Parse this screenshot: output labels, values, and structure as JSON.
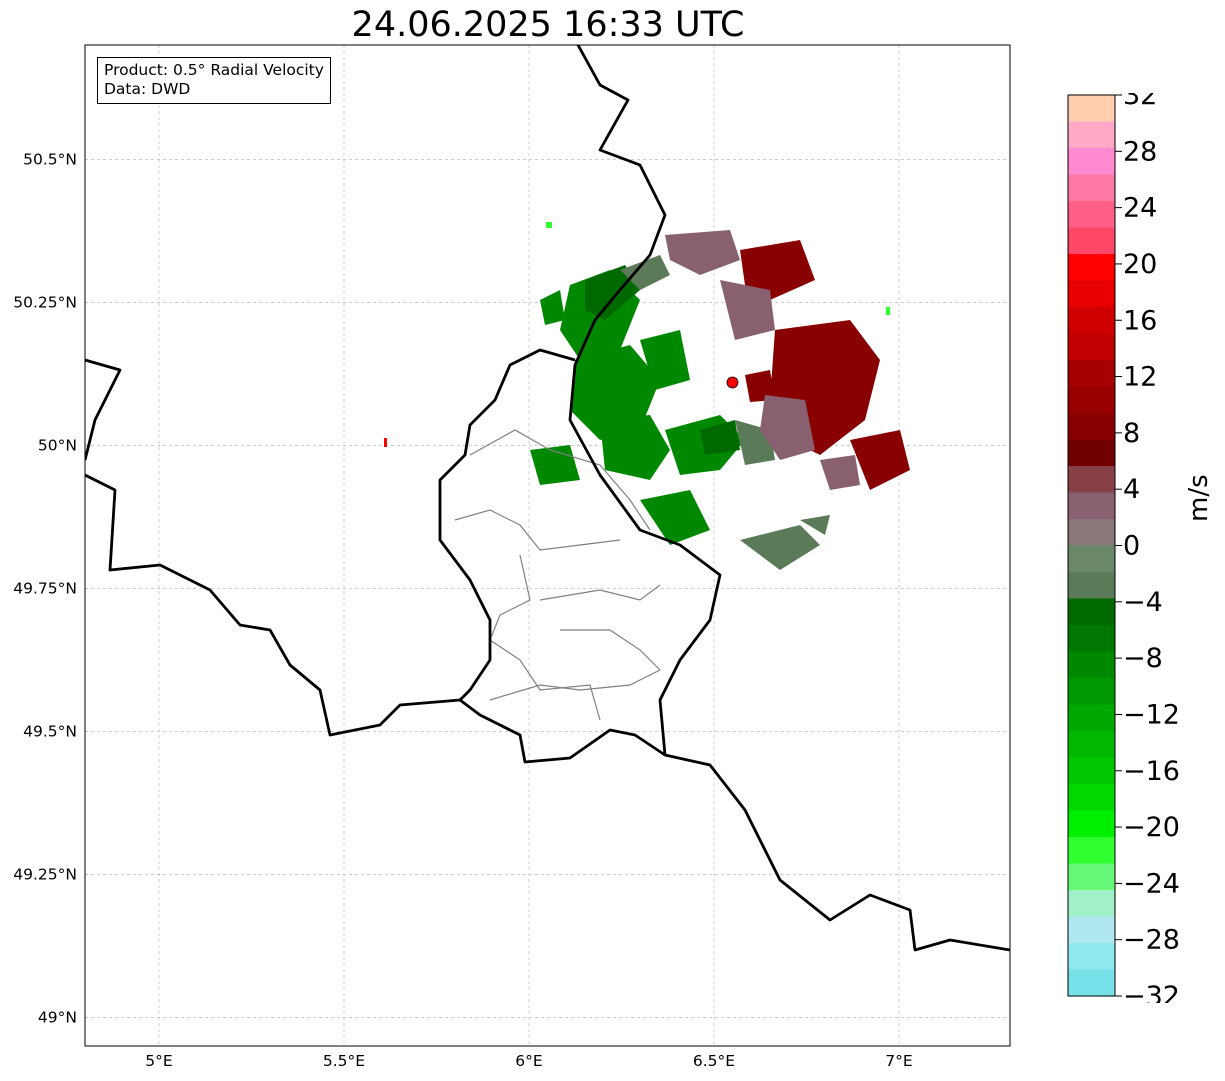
{
  "title": "24.06.2025 16:33 UTC",
  "info_box": {
    "product_line": "Product: 0.5° Radial Velocity",
    "data_line": "Data: DWD"
  },
  "map": {
    "lon_range": [
      4.8,
      7.3
    ],
    "lat_range": [
      48.95,
      50.7
    ],
    "lon_ticks": [
      {
        "value": 5.0,
        "label": "5°E"
      },
      {
        "value": 5.5,
        "label": "5.5°E"
      },
      {
        "value": 6.0,
        "label": "6°E"
      },
      {
        "value": 6.5,
        "label": "6.5°E"
      },
      {
        "value": 7.0,
        "label": "7°E"
      }
    ],
    "lat_ticks": [
      {
        "value": 50.5,
        "label": "50.5°N"
      },
      {
        "value": 50.25,
        "label": "50.25°N"
      },
      {
        "value": 50.0,
        "label": "50°N"
      },
      {
        "value": 49.75,
        "label": "49.75°N"
      },
      {
        "value": 49.5,
        "label": "49.5°N"
      },
      {
        "value": 49.25,
        "label": "49.25°N"
      },
      {
        "value": 49.0,
        "label": "49°N"
      }
    ],
    "radar_site": {
      "lon": 6.55,
      "lat": 50.11,
      "color": "#ff0000"
    },
    "grid": true
  },
  "colorbar": {
    "unit": "m/s",
    "min": -32,
    "max": 32,
    "ticks": [
      {
        "value": 32,
        "label": "32"
      },
      {
        "value": 28,
        "label": "28"
      },
      {
        "value": 24,
        "label": "24"
      },
      {
        "value": 20,
        "label": "20"
      },
      {
        "value": 16,
        "label": "16"
      },
      {
        "value": 12,
        "label": "12"
      },
      {
        "value": 8,
        "label": "8"
      },
      {
        "value": 4,
        "label": "4"
      },
      {
        "value": 0,
        "label": "0"
      },
      {
        "value": -4,
        "label": "−4"
      },
      {
        "value": -8,
        "label": "−8"
      },
      {
        "value": -12,
        "label": "−12"
      },
      {
        "value": -16,
        "label": "−16"
      },
      {
        "value": -20,
        "label": "−20"
      },
      {
        "value": -24,
        "label": "−24"
      },
      {
        "value": -28,
        "label": "−28"
      },
      {
        "value": -32,
        "label": "−32"
      }
    ],
    "colors_top_to_bottom": [
      "#ffcfb0",
      "#ffa8c8",
      "#ff8ad0",
      "#ff78a8",
      "#ff6088",
      "#ff4868",
      "#ff0000",
      "#e80000",
      "#d00000",
      "#c00000",
      "#a80000",
      "#980000",
      "#880000",
      "#700000",
      "#884048",
      "#886070",
      "#887878",
      "#6a8868",
      "#5a7a58",
      "#006a00",
      "#007800",
      "#008800",
      "#009800",
      "#00a800",
      "#00b800",
      "#00c800",
      "#00d800",
      "#00f000",
      "#30ff30",
      "#68f878",
      "#a0f0c8",
      "#b0e8f0",
      "#90e8f0",
      "#78e0e8"
    ]
  }
}
